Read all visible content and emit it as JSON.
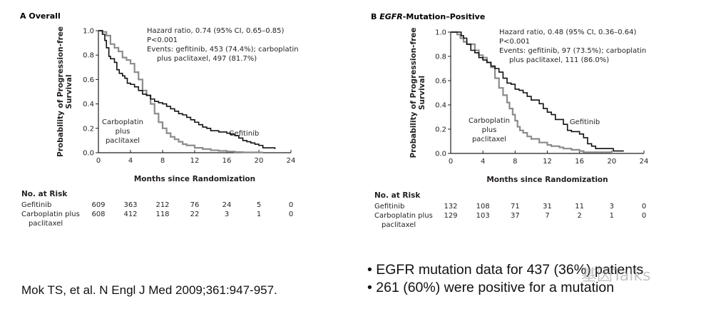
{
  "chart_data": [
    {
      "type": "line",
      "panel_letter": "A",
      "title": "Overall",
      "title_italic_prefix": "",
      "xlabel": "Months since Randomization",
      "ylabel_line1": "Probability of Progression-free",
      "ylabel_line2": "Survival",
      "xlim": [
        0,
        24
      ],
      "ylim": [
        0,
        1.0
      ],
      "xticks": [
        "0",
        "4",
        "8",
        "12",
        "16",
        "20",
        "24"
      ],
      "yticks": [
        "0.0",
        "0.2",
        "0.4",
        "0.6",
        "0.8",
        "1.0"
      ],
      "grid": false,
      "annotation": [
        "Hazard ratio, 0.74 (95% CI, 0.65–0.85)",
        "P<0.001",
        "Events: gefitinib, 453 (74.4%); carboplatin",
        "plus paclitaxel, 497 (81.7%)"
      ],
      "series": [
        {
          "name": "Gefitinib",
          "label_lines": [
            "Gefitinib"
          ],
          "color": "#111111",
          "x": [
            0,
            0.5,
            0.8,
            1.0,
            1.3,
            1.5,
            2.0,
            2.3,
            2.6,
            3.0,
            3.3,
            3.6,
            4.0,
            4.5,
            5.0,
            5.5,
            6.0,
            6.5,
            7.0,
            7.5,
            8.0,
            8.5,
            9.0,
            9.5,
            10.0,
            10.5,
            11.0,
            11.5,
            12.0,
            12.5,
            13.0,
            13.5,
            14.0,
            15.0,
            15.5,
            16.0,
            16.5,
            17.0,
            17.5,
            18.0,
            18.5,
            19.0,
            19.5,
            20.0,
            20.5,
            22.0
          ],
          "y": [
            1.0,
            0.97,
            0.92,
            0.86,
            0.79,
            0.77,
            0.74,
            0.68,
            0.65,
            0.63,
            0.61,
            0.57,
            0.56,
            0.54,
            0.51,
            0.48,
            0.47,
            0.44,
            0.42,
            0.41,
            0.4,
            0.38,
            0.36,
            0.34,
            0.32,
            0.31,
            0.29,
            0.27,
            0.25,
            0.23,
            0.21,
            0.2,
            0.18,
            0.17,
            0.17,
            0.16,
            0.15,
            0.14,
            0.12,
            0.1,
            0.09,
            0.08,
            0.07,
            0.06,
            0.04,
            0.03
          ]
        },
        {
          "name": "Carboplatin plus paclitaxel",
          "label_lines": [
            "Carboplatin",
            "plus",
            "paclitaxel"
          ],
          "color": "#8c8c8c",
          "x": [
            0,
            0.5,
            1.0,
            1.5,
            2.0,
            2.5,
            3.0,
            3.5,
            4.0,
            4.5,
            5.0,
            5.5,
            6.0,
            6.5,
            7.0,
            7.5,
            8.0,
            8.5,
            9.0,
            9.5,
            10.0,
            10.5,
            11.0,
            12.0,
            13.0,
            14.0,
            15.0,
            16.0,
            17.0,
            18.0,
            20.0,
            20.5
          ],
          "y": [
            1.0,
            0.99,
            0.96,
            0.89,
            0.86,
            0.83,
            0.78,
            0.76,
            0.73,
            0.66,
            0.6,
            0.51,
            0.47,
            0.4,
            0.32,
            0.25,
            0.2,
            0.16,
            0.13,
            0.11,
            0.09,
            0.07,
            0.06,
            0.04,
            0.03,
            0.02,
            0.015,
            0.01,
            0.005,
            0.003,
            0.002,
            0.002
          ]
        }
      ],
      "risk_table": {
        "header": "No. at Risk",
        "rows": [
          {
            "label_lines": [
              "Gefitinib"
            ],
            "values": [
              "609",
              "363",
              "212",
              "76",
              "24",
              "5",
              "0"
            ]
          },
          {
            "label_lines": [
              "Carboplatin plus",
              "paclitaxel"
            ],
            "values": [
              "608",
              "412",
              "118",
              "22",
              "3",
              "1",
              "0"
            ]
          }
        ]
      }
    },
    {
      "type": "line",
      "panel_letter": "B",
      "title": "-Mutation–Positive",
      "title_italic_prefix": "EGFR",
      "xlabel": "Months since Randomization",
      "ylabel_line1": "Probability of Progression-free",
      "ylabel_line2": "Survival",
      "xlim": [
        0,
        24
      ],
      "ylim": [
        0,
        1.0
      ],
      "xticks": [
        "0",
        "4",
        "8",
        "12",
        "16",
        "20",
        "24"
      ],
      "yticks": [
        "0.0",
        "0.2",
        "0.4",
        "0.6",
        "0.8",
        "1.0"
      ],
      "grid": false,
      "annotation": [
        "Hazard ratio, 0.48 (95% CI, 0.36–0.64)",
        "P<0.001",
        "Events: gefitinib, 97 (73.5%); carboplatin",
        "plus paclitaxel, 111 (86.0%)"
      ],
      "series": [
        {
          "name": "Gefitinib",
          "label_lines": [
            "Gefitinib"
          ],
          "color": "#111111",
          "x": [
            0,
            1.3,
            1.6,
            2.0,
            2.5,
            3.0,
            3.5,
            4.0,
            4.5,
            5.0,
            5.5,
            6.0,
            6.5,
            7.0,
            7.5,
            8.0,
            8.5,
            9.0,
            9.5,
            10.0,
            11.0,
            11.5,
            12.0,
            12.5,
            13.0,
            14.0,
            14.5,
            15.0,
            16.0,
            16.5,
            17.0,
            17.5,
            18.0,
            20.0,
            20.2,
            21.5
          ],
          "y": [
            1.0,
            0.97,
            0.95,
            0.9,
            0.85,
            0.83,
            0.79,
            0.77,
            0.75,
            0.72,
            0.7,
            0.67,
            0.62,
            0.58,
            0.57,
            0.53,
            0.52,
            0.5,
            0.47,
            0.44,
            0.41,
            0.37,
            0.34,
            0.32,
            0.28,
            0.24,
            0.19,
            0.18,
            0.16,
            0.13,
            0.08,
            0.06,
            0.04,
            0.04,
            0.02,
            0.02
          ]
        },
        {
          "name": "Carboplatin plus paclitaxel",
          "label_lines": [
            "Carboplatin",
            "plus",
            "paclitaxel"
          ],
          "color": "#8c8c8c",
          "x": [
            0,
            0.8,
            1.2,
            1.6,
            2.0,
            3.0,
            3.5,
            4.0,
            4.5,
            5.0,
            5.5,
            6.0,
            6.5,
            7.0,
            7.3,
            7.7,
            8.0,
            8.3,
            8.6,
            9.0,
            9.5,
            10.0,
            11.0,
            12.0,
            12.5,
            13.5,
            14.0,
            15.0,
            16.0,
            16.5,
            20.0
          ],
          "y": [
            1.0,
            0.98,
            0.95,
            0.92,
            0.9,
            0.85,
            0.81,
            0.79,
            0.75,
            0.71,
            0.62,
            0.54,
            0.48,
            0.42,
            0.37,
            0.32,
            0.27,
            0.22,
            0.19,
            0.17,
            0.14,
            0.12,
            0.09,
            0.07,
            0.06,
            0.05,
            0.04,
            0.03,
            0.02,
            0.01,
            0.0
          ]
        }
      ],
      "risk_table": {
        "header": "No. at Risk",
        "rows": [
          {
            "label_lines": [
              "Gefitinib"
            ],
            "values": [
              "132",
              "108",
              "71",
              "31",
              "11",
              "3",
              "0"
            ]
          },
          {
            "label_lines": [
              "Carboplatin plus",
              "paclitaxel"
            ],
            "values": [
              "129",
              "103",
              "37",
              "7",
              "2",
              "1",
              "0"
            ]
          }
        ]
      }
    }
  ],
  "footer": {
    "citation": "Mok TS, et al. N Engl J Med 2009;361:947-957.",
    "bullets": [
      "EGFR mutation data for 437 (36%) patients",
      "261 (60%) were positive for a mutation"
    ],
    "bullet_glyph": "•",
    "watermark": "基因Talks"
  }
}
